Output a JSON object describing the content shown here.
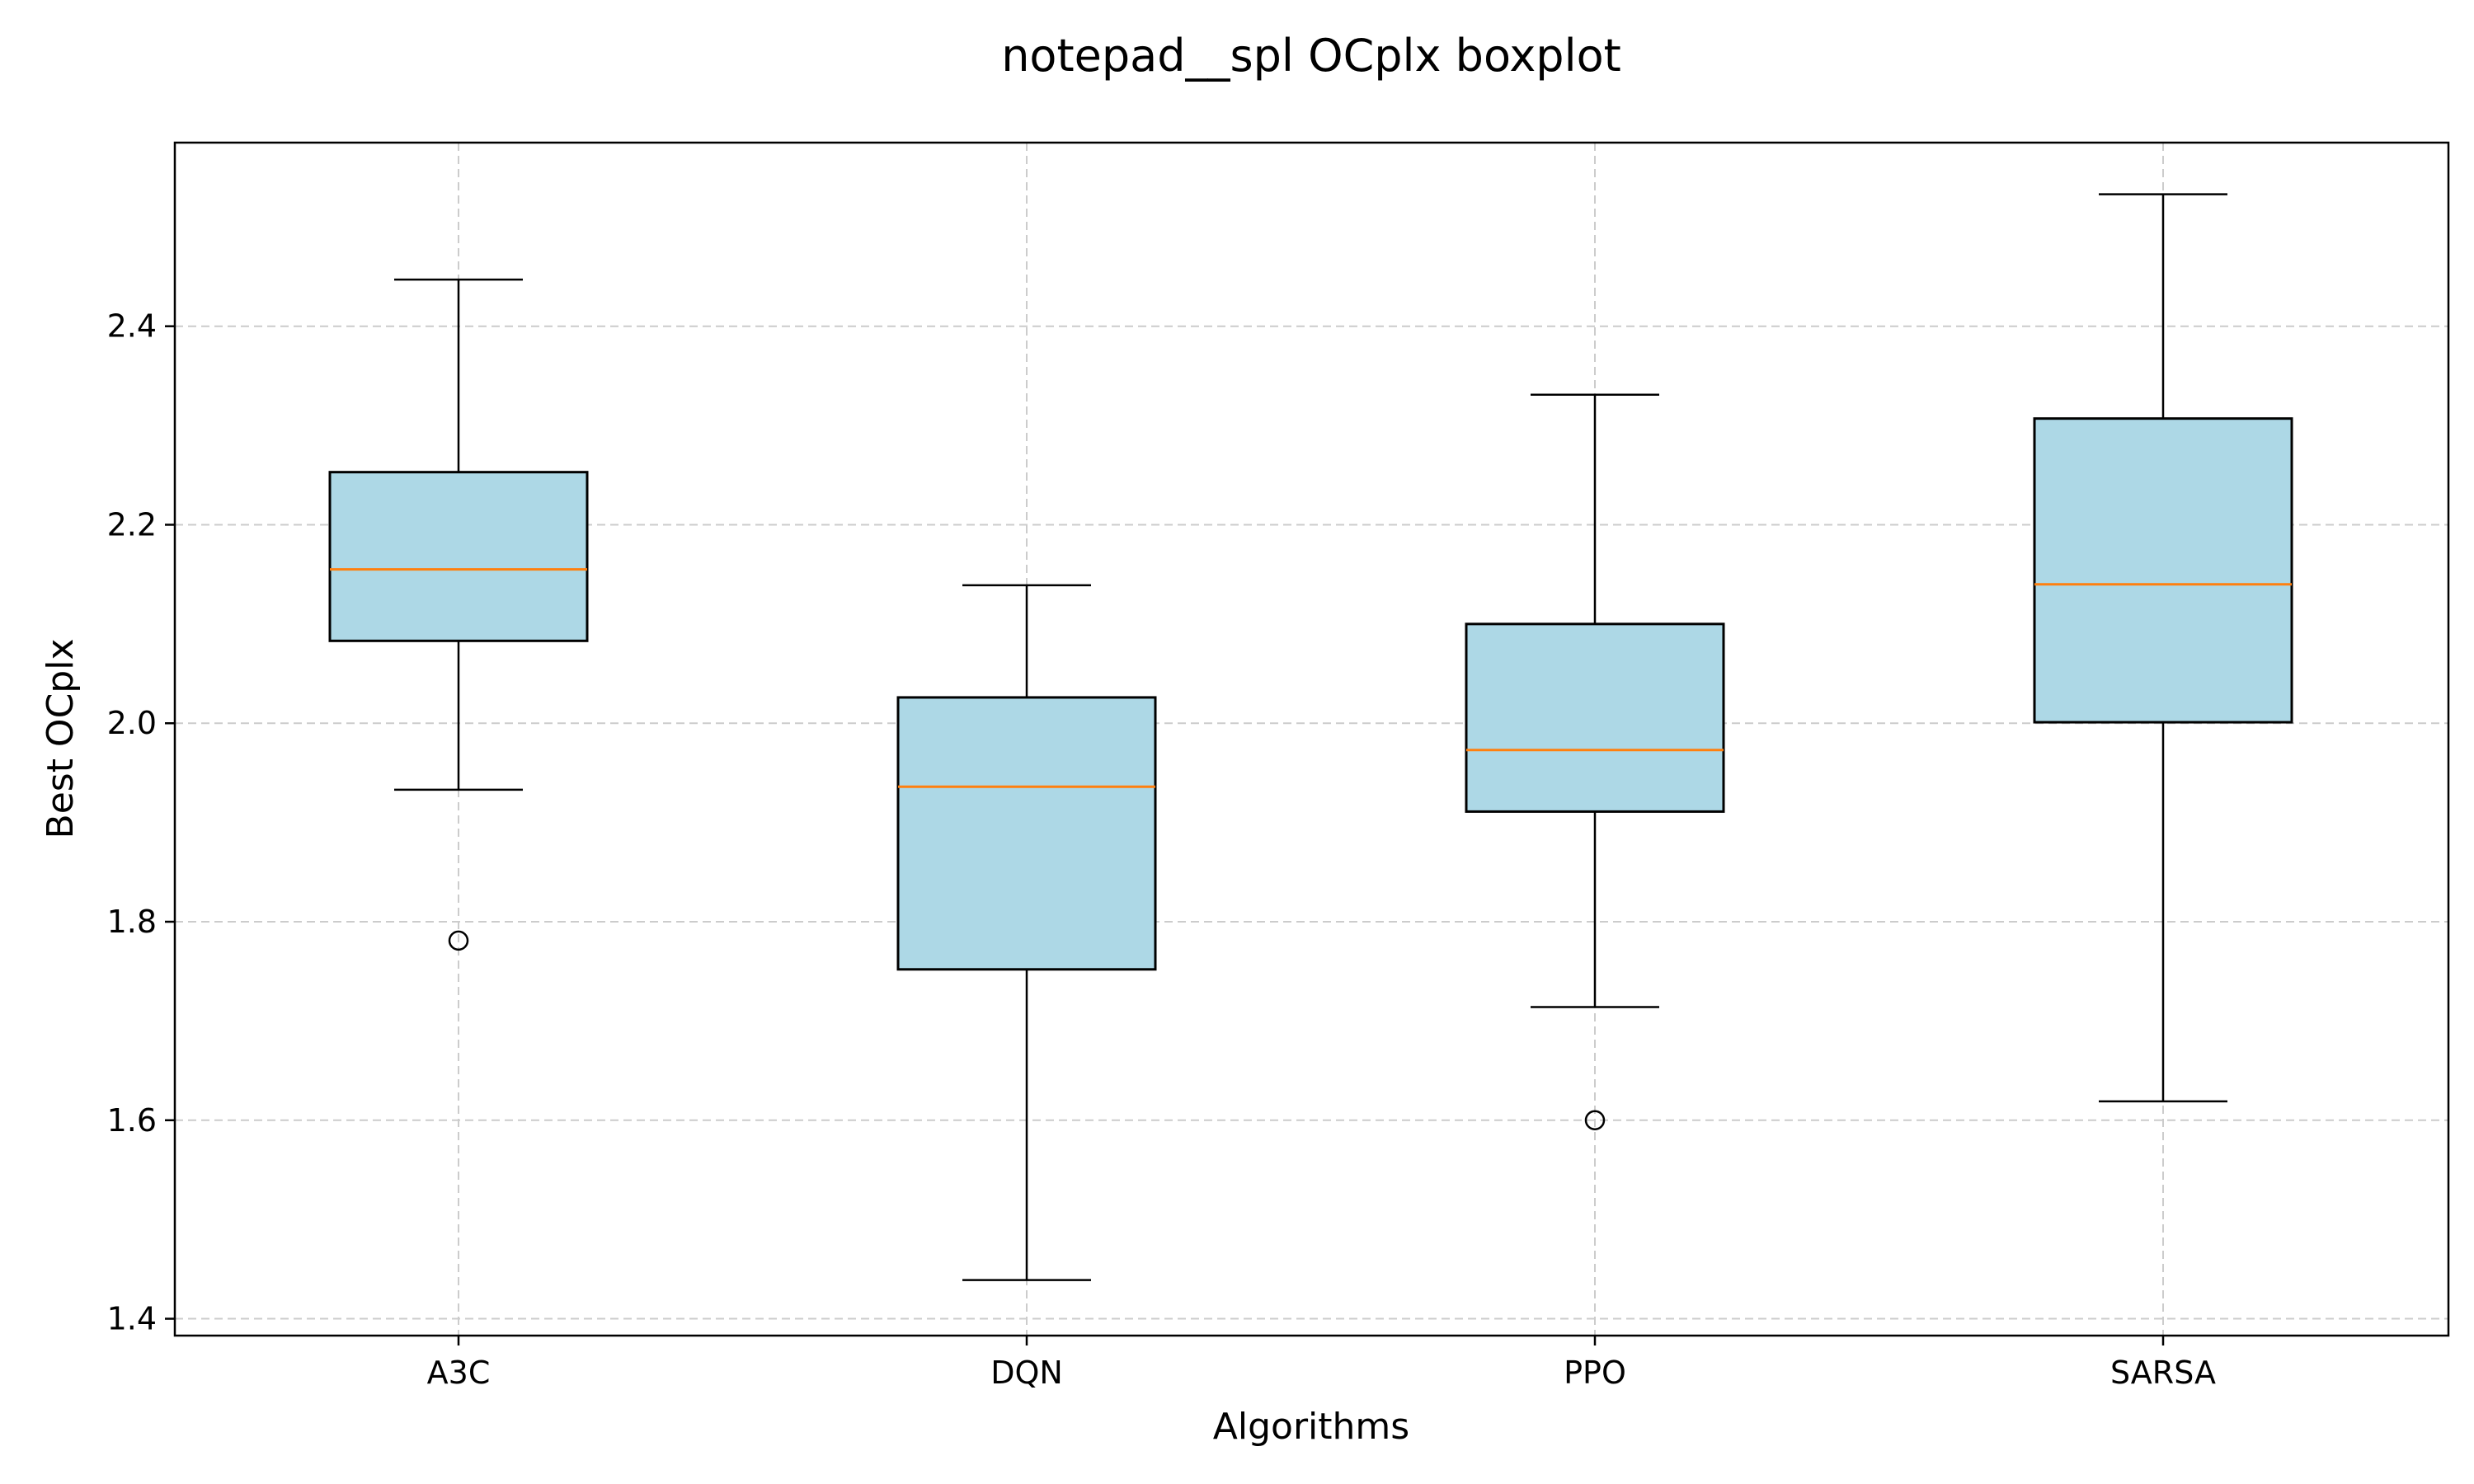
{
  "chart_data": {
    "type": "boxplot",
    "title": "notepad__spl OCplx boxplot",
    "xlabel": "Algorithms",
    "ylabel": "Best OCplx",
    "ylim": [
      1.383,
      2.585
    ],
    "yticks": [
      "1.4",
      "1.6",
      "1.8",
      "2.0",
      "2.2",
      "2.4"
    ],
    "grid": true,
    "categories": [
      "A3C",
      "DQN",
      "PPO",
      "SARSA"
    ],
    "boxes": [
      {
        "name": "A3C",
        "whisker_low": 1.933,
        "q1": 2.083,
        "median": 2.155,
        "q3": 2.253,
        "whisker_high": 2.447,
        "outliers": [
          1.781
        ]
      },
      {
        "name": "DQN",
        "whisker_low": 1.439,
        "q1": 1.752,
        "median": 1.936,
        "q3": 2.026,
        "whisker_high": 2.139,
        "outliers": []
      },
      {
        "name": "PPO",
        "whisker_low": 1.714,
        "q1": 1.911,
        "median": 1.973,
        "q3": 2.1,
        "whisker_high": 2.331,
        "outliers": [
          1.6
        ]
      },
      {
        "name": "SARSA",
        "whisker_low": 1.619,
        "q1": 2.001,
        "median": 2.14,
        "q3": 2.307,
        "whisker_high": 2.533,
        "outliers": []
      }
    ],
    "colors": {
      "box_fill": "#add8e6",
      "box_edge": "#000000",
      "median": "#ff7f0e",
      "grid": "#cccccc"
    }
  }
}
